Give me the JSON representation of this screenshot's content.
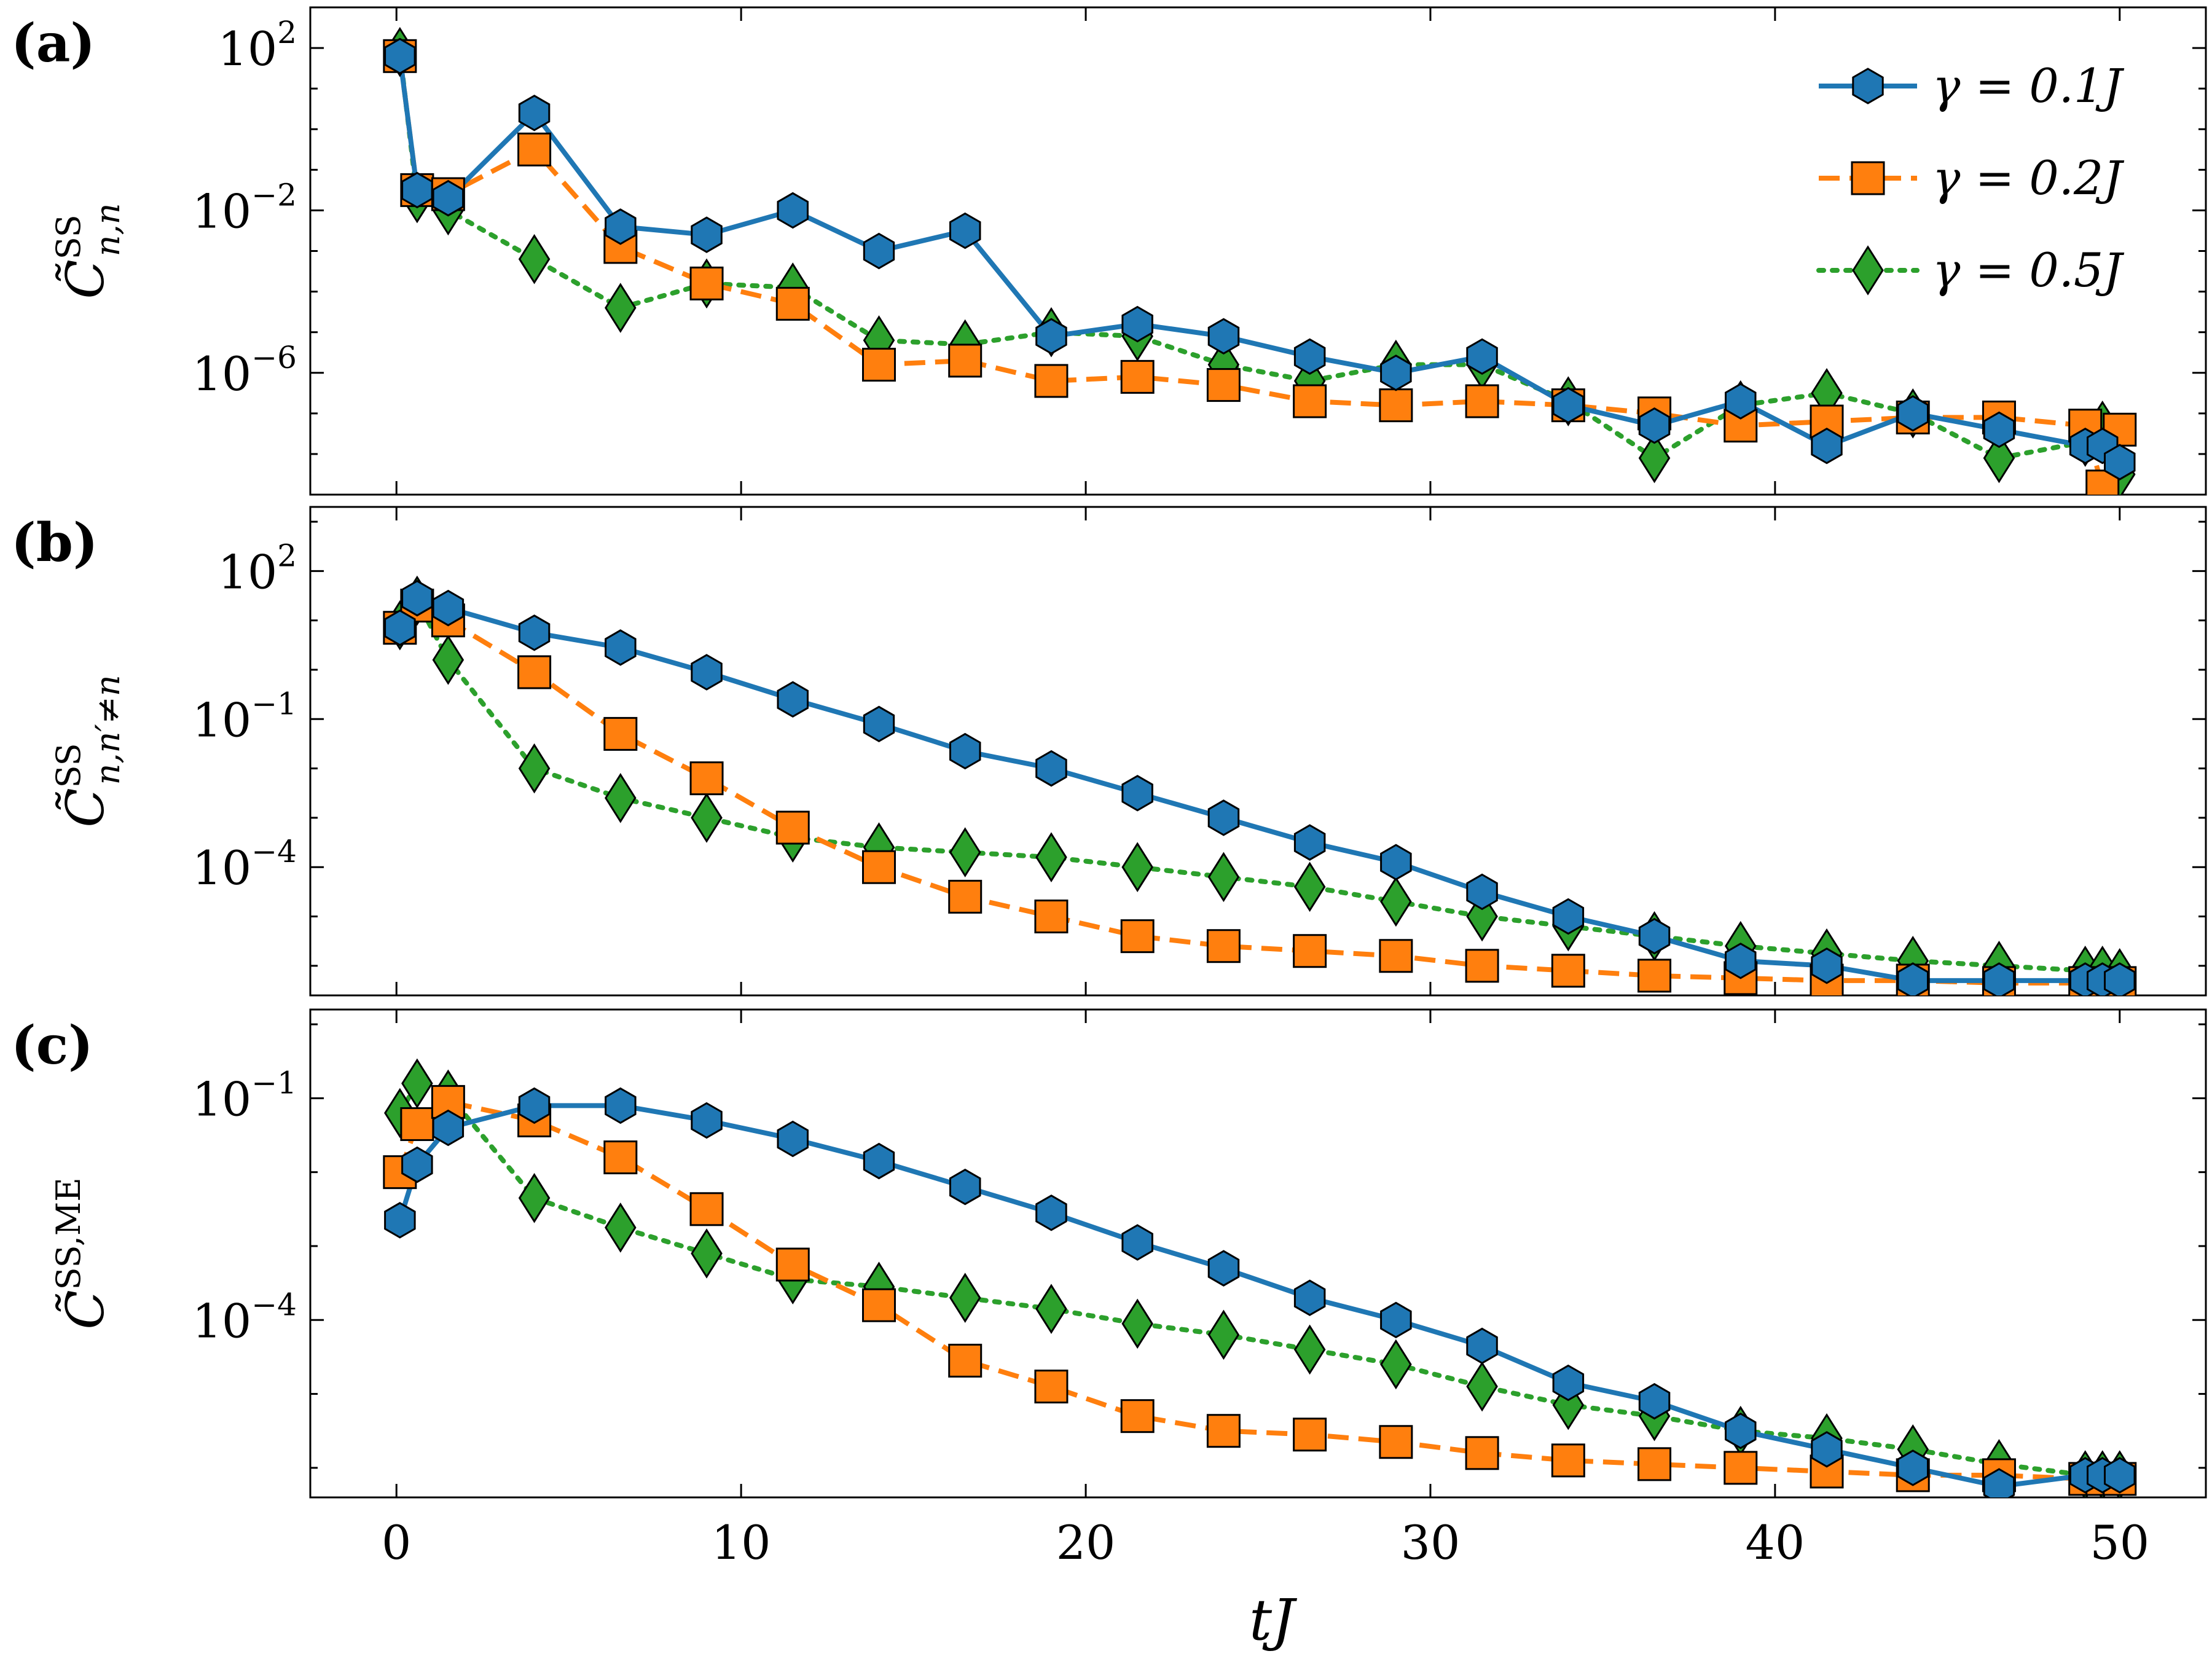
{
  "chart_data": [
    {
      "type": "line",
      "panel_label": "(a)",
      "ylabel": {
        "base": "C̃",
        "sup": "SS",
        "sub": "n,n"
      },
      "yscale": "log",
      "ylim_log10": [
        -9.0,
        3.0
      ],
      "ytick_exponents": [
        2,
        -2,
        -6
      ],
      "legend": {
        "placement": "top-right"
      },
      "series": [
        {
          "name": "γ = 0.1J",
          "color": "#1f77b4",
          "marker": "hexagon",
          "linestyle": "solid",
          "x": [
            0.1,
            0.6,
            1.5,
            4,
            6.5,
            9,
            11.5,
            14,
            16.5,
            19,
            21.5,
            24,
            26.5,
            29,
            31.5,
            34,
            36.5,
            39,
            41.5,
            44,
            46.5,
            49,
            49.5,
            50
          ],
          "logy": [
            1.8,
            -1.5,
            -1.7,
            0.4,
            -2.4,
            -2.6,
            -2.0,
            -3.0,
            -2.5,
            -5.1,
            -4.8,
            -5.1,
            -5.6,
            -6.0,
            -5.6,
            -6.8,
            -7.3,
            -6.7,
            -7.8,
            -7.0,
            -7.4,
            -7.8,
            -7.8,
            -8.2
          ]
        },
        {
          "name": "γ = 0.2J",
          "color": "#ff7f0e",
          "marker": "square",
          "linestyle": "dashed",
          "x": [
            0.1,
            0.6,
            1.5,
            4,
            6.5,
            9,
            11.5,
            14,
            16.5,
            19,
            21.5,
            24,
            26.5,
            29,
            31.5,
            34,
            36.5,
            39,
            41.5,
            44,
            46.5,
            49,
            49.5,
            50
          ],
          "logy": [
            1.8,
            -1.5,
            -1.6,
            -0.5,
            -2.9,
            -3.8,
            -4.3,
            -5.8,
            -5.7,
            -6.2,
            -6.1,
            -6.3,
            -6.7,
            -6.8,
            -6.7,
            -6.8,
            -7.0,
            -7.3,
            -7.2,
            -7.1,
            -7.1,
            -7.3,
            -8.8,
            -7.4
          ]
        },
        {
          "name": "γ = 0.5J",
          "color": "#2ca02c",
          "marker": "diamond",
          "linestyle": "dotted",
          "x": [
            0.1,
            0.6,
            1.5,
            4,
            6.5,
            9,
            11.5,
            14,
            16.5,
            19,
            21.5,
            24,
            26.5,
            29,
            31.5,
            34,
            36.5,
            39,
            41.5,
            44,
            46.5,
            49,
            49.5,
            50
          ],
          "logy": [
            1.9,
            -1.7,
            -2.0,
            -3.2,
            -4.4,
            -3.8,
            -3.9,
            -5.2,
            -5.3,
            -5.0,
            -5.1,
            -5.8,
            -6.2,
            -5.8,
            -5.8,
            -6.7,
            -8.1,
            -6.8,
            -6.5,
            -7.0,
            -8.1,
            -7.7,
            -7.3,
            -8.5
          ]
        }
      ]
    },
    {
      "type": "line",
      "panel_label": "(b)",
      "ylabel": {
        "base": "C̃",
        "sup": "SS",
        "sub": "n,n′≠n"
      },
      "yscale": "log",
      "ylim_log10": [
        -6.6,
        3.3
      ],
      "ytick_exponents": [
        2,
        -1,
        -4
      ],
      "series": [
        {
          "name": "γ = 0.1J",
          "color": "#1f77b4",
          "marker": "hexagon",
          "linestyle": "solid",
          "x": [
            0.1,
            0.6,
            1.5,
            4,
            6.5,
            9,
            11.5,
            14,
            16.5,
            19,
            21.5,
            24,
            26.5,
            29,
            31.5,
            34,
            36.5,
            39,
            41.5,
            44,
            46.5,
            49,
            49.5,
            50
          ],
          "logy": [
            0.85,
            1.45,
            1.25,
            0.75,
            0.45,
            -0.05,
            -0.6,
            -1.1,
            -1.65,
            -2.0,
            -2.5,
            -3.0,
            -3.5,
            -3.9,
            -4.5,
            -5.0,
            -5.4,
            -5.9,
            -6.0,
            -6.3,
            -6.3,
            -6.3,
            -6.3,
            -6.3
          ]
        },
        {
          "name": "γ = 0.2J",
          "color": "#ff7f0e",
          "marker": "square",
          "linestyle": "dashed",
          "x": [
            0.1,
            0.6,
            1.5,
            4,
            6.5,
            9,
            11.5,
            14,
            16.5,
            19,
            21.5,
            24,
            26.5,
            29,
            31.5,
            34,
            36.5,
            39,
            41.5,
            44,
            46.5,
            49,
            49.5,
            50
          ],
          "logy": [
            0.85,
            1.3,
            1.0,
            -0.05,
            -1.3,
            -2.2,
            -3.2,
            -4.0,
            -4.6,
            -5.0,
            -5.4,
            -5.6,
            -5.7,
            -5.8,
            -6.0,
            -6.1,
            -6.2,
            -6.25,
            -6.3,
            -6.3,
            -6.35,
            -6.35,
            -6.35,
            -6.35
          ]
        },
        {
          "name": "γ = 0.5J",
          "color": "#2ca02c",
          "marker": "diamond",
          "linestyle": "dotted",
          "x": [
            0.1,
            0.6,
            1.5,
            4,
            6.5,
            9,
            11.5,
            14,
            16.5,
            19,
            21.5,
            24,
            26.5,
            29,
            31.5,
            34,
            36.5,
            39,
            41.5,
            44,
            46.5,
            49,
            49.5,
            50
          ],
          "logy": [
            0.9,
            1.4,
            0.2,
            -2.0,
            -2.6,
            -3.0,
            -3.4,
            -3.6,
            -3.7,
            -3.8,
            -4.0,
            -4.2,
            -4.4,
            -4.7,
            -5.0,
            -5.2,
            -5.4,
            -5.6,
            -5.75,
            -5.9,
            -6.0,
            -6.1,
            -6.1,
            -6.15
          ]
        }
      ]
    },
    {
      "type": "line",
      "panel_label": "(c)",
      "ylabel": {
        "base": "C̃",
        "sup": "SS,ME",
        "sub": ""
      },
      "yscale": "log",
      "ylim_log10": [
        -6.4,
        0.2
      ],
      "ytick_exponents": [
        -1,
        -4
      ],
      "series": [
        {
          "name": "γ = 0.1J",
          "color": "#1f77b4",
          "marker": "hexagon",
          "linestyle": "solid",
          "x": [
            0.1,
            0.6,
            1.5,
            4,
            6.5,
            9,
            11.5,
            14,
            16.5,
            19,
            21.5,
            24,
            26.5,
            29,
            31.5,
            34,
            36.5,
            39,
            41.5,
            44,
            46.5,
            49,
            49.5,
            50
          ],
          "logy": [
            -2.65,
            -1.9,
            -1.4,
            -1.1,
            -1.1,
            -1.3,
            -1.55,
            -1.85,
            -2.2,
            -2.55,
            -2.95,
            -3.3,
            -3.7,
            -4.0,
            -4.35,
            -4.85,
            -5.1,
            -5.5,
            -5.75,
            -6.0,
            -6.25,
            -6.1,
            -6.1,
            -6.1
          ]
        },
        {
          "name": "γ = 0.2J",
          "color": "#ff7f0e",
          "marker": "square",
          "linestyle": "dashed",
          "x": [
            0.1,
            0.6,
            1.5,
            4,
            6.5,
            9,
            11.5,
            14,
            16.5,
            19,
            21.5,
            24,
            26.5,
            29,
            31.5,
            34,
            36.5,
            39,
            41.5,
            44,
            46.5,
            49,
            49.5,
            50
          ],
          "logy": [
            -2.0,
            -1.35,
            -1.05,
            -1.3,
            -1.8,
            -2.5,
            -3.25,
            -3.8,
            -4.55,
            -4.9,
            -5.3,
            -5.5,
            -5.55,
            -5.65,
            -5.8,
            -5.9,
            -5.95,
            -6.0,
            -6.05,
            -6.1,
            -6.1,
            -6.15,
            -6.15,
            -6.15
          ]
        },
        {
          "name": "γ = 0.5J",
          "color": "#2ca02c",
          "marker": "diamond",
          "linestyle": "dotted",
          "x": [
            0.1,
            0.6,
            1.5,
            4,
            6.5,
            9,
            11.5,
            14,
            16.5,
            19,
            21.5,
            24,
            26.5,
            29,
            31.5,
            34,
            36.5,
            39,
            41.5,
            44,
            46.5,
            49,
            49.5,
            50
          ],
          "logy": [
            -1.2,
            -0.8,
            -0.95,
            -2.35,
            -2.75,
            -3.1,
            -3.45,
            -3.55,
            -3.7,
            -3.85,
            -4.05,
            -4.2,
            -4.4,
            -4.6,
            -4.9,
            -5.15,
            -5.3,
            -5.5,
            -5.6,
            -5.75,
            -5.95,
            -6.1,
            -6.1,
            -6.1
          ]
        }
      ]
    }
  ],
  "shared": {
    "xlabel": "tJ",
    "xlim": [
      -2.5,
      52.5
    ],
    "xticks": [
      0,
      10,
      20,
      30,
      40,
      50
    ],
    "tick_base": "10",
    "legend_entries": [
      "γ = 0.1J",
      "γ = 0.2J",
      "γ = 0.5J"
    ]
  }
}
